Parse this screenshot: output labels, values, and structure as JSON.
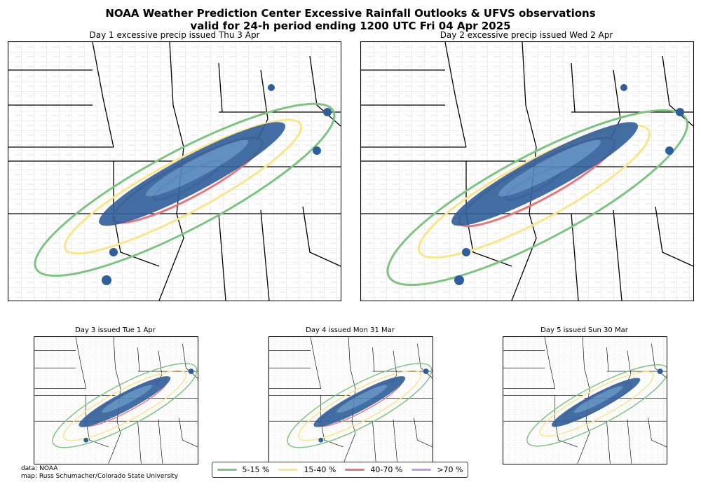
{
  "title_line1": "NOAA Weather Prediction Center Excessive Rainfall Outlooks & UFVS observations",
  "title_line2": "valid for 24-h period ending 1200 UTC Fri 04 Apr 2025",
  "panels": [
    {
      "title": "Day 1 excessive precip issued Thu 3 Apr"
    },
    {
      "title": "Day 2 excessive precip issued Wed 2 Apr"
    },
    {
      "title": "Day 3 issued Tue 1 Apr"
    },
    {
      "title": "Day 4 issued Mon 31 Mar"
    },
    {
      "title": "Day 5 issued Sun 30 Mar"
    }
  ],
  "legend": [
    {
      "label": "5-15 %",
      "color": "#7cc47f"
    },
    {
      "label": "15-40 %",
      "color": "#f9e58a"
    },
    {
      "label": "40-70 %",
      "color": "#e8767c"
    },
    {
      "label": ">70 %",
      "color": "#c29cf0"
    }
  ],
  "credit": {
    "line1": "data: NOAA",
    "line2": "map: Russ Schumacher/Colorado State University"
  },
  "colors": {
    "observation_dark": "#2f5f9a",
    "observation_light": "#6a9fd1"
  }
}
